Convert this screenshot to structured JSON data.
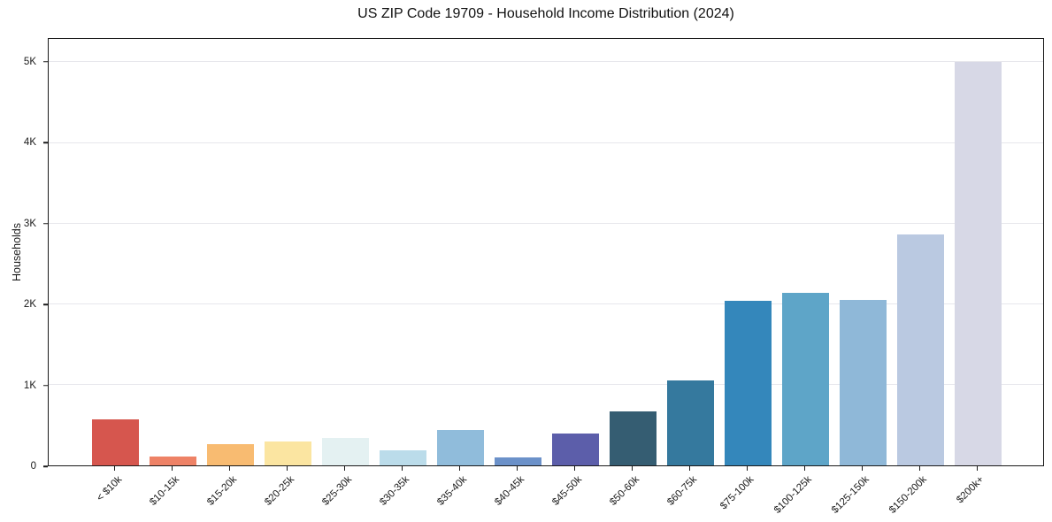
{
  "title": "US ZIP Code 19709 - Household Income Distribution (2024)",
  "chart_data": {
    "type": "bar",
    "title": "US ZIP Code 19709 - Household Income Distribution (2024)",
    "xlabel": "",
    "ylabel": "Households",
    "categories": [
      "< $10k",
      "$10-15k",
      "$15-20k",
      "$20-25k",
      "$25-30k",
      "$30-35k",
      "$35-40k",
      "$40-45k",
      "$45-50k",
      "$50-60k",
      "$60-75k",
      "$75-100k",
      "$100-125k",
      "$125-150k",
      "$150-200k",
      "$200k+"
    ],
    "values": [
      570,
      105,
      260,
      300,
      335,
      185,
      435,
      95,
      400,
      670,
      1055,
      2040,
      2140,
      2050,
      2860,
      5000
    ],
    "bar_colors": [
      "#d6564e",
      "#ee8266",
      "#f8bb71",
      "#fbe5a1",
      "#e4f1f2",
      "#bbdcea",
      "#90bcdb",
      "#6b91c9",
      "#5c5eaa",
      "#355d72",
      "#35799e",
      "#3487bb",
      "#5ea5c8",
      "#8fb8d8",
      "#bac9e1",
      "#d7d8e6"
    ],
    "yticks": [
      {
        "value": 0,
        "label": "0"
      },
      {
        "value": 1000,
        "label": "1K"
      },
      {
        "value": 2000,
        "label": "2K"
      },
      {
        "value": 3000,
        "label": "3K"
      },
      {
        "value": 4000,
        "label": "4K"
      },
      {
        "value": 5000,
        "label": "5K"
      }
    ],
    "ylim": [
      0,
      5290
    ],
    "grid": "horizontal",
    "legend": "none",
    "background_color": "#ffffff",
    "axis_color": "#1a1a1a",
    "gridline_color": "#e7e7ec"
  }
}
